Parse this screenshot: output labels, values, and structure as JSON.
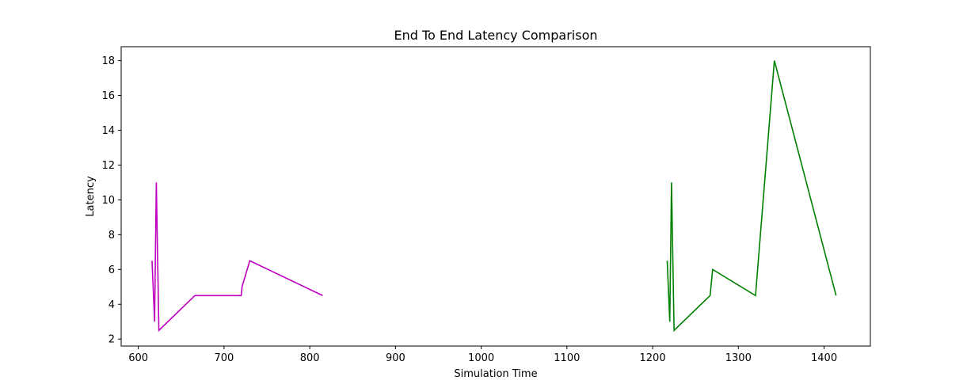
{
  "chart_data": {
    "type": "line",
    "title": "End To End Latency Comparison",
    "xlabel": "Simulation Time",
    "ylabel": "Latency",
    "xlim": [
      580,
      1454
    ],
    "ylim": [
      1.6,
      18.8
    ],
    "xticks": [
      600,
      700,
      800,
      900,
      1000,
      1100,
      1200,
      1300,
      1400
    ],
    "yticks": [
      2,
      4,
      6,
      8,
      10,
      12,
      14,
      16,
      18
    ],
    "grid": false,
    "legend": "none",
    "series": [
      {
        "color": "#bf00bf",
        "points": [
          [
            616,
            6.5
          ],
          [
            619,
            3.0
          ],
          [
            621,
            11.0
          ],
          [
            624,
            2.5
          ],
          [
            666,
            4.5
          ],
          [
            720,
            4.5
          ],
          [
            721,
            5.0
          ],
          [
            724,
            5.5
          ],
          [
            727,
            6.0
          ],
          [
            730,
            6.5
          ],
          [
            815,
            4.5
          ]
        ]
      },
      {
        "color": "#008000",
        "points": [
          [
            1217,
            6.5
          ],
          [
            1220,
            3.0
          ],
          [
            1222,
            11.0
          ],
          [
            1225,
            2.5
          ],
          [
            1267,
            4.5
          ],
          [
            1270,
            6.0
          ],
          [
            1320,
            4.5
          ],
          [
            1342,
            18.0
          ],
          [
            1414,
            4.5
          ]
        ]
      }
    ]
  }
}
